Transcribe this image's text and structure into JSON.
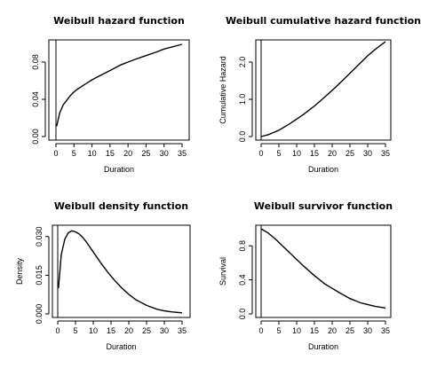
{
  "chart_data": [
    {
      "type": "line",
      "title": "Weibull hazard function",
      "xlabel": "Duration",
      "ylabel": "",
      "xlim": [
        0,
        35
      ],
      "ylim": [
        0,
        0.1
      ],
      "xticks": [
        "0",
        "5",
        "10",
        "15",
        "20",
        "25",
        "30",
        "35"
      ],
      "yticks": [
        "0.00",
        "0.04",
        "0.08"
      ],
      "series": [
        {
          "x": [
            0.2,
            1,
            2,
            3,
            4,
            5,
            6,
            8,
            10,
            12,
            15,
            18,
            20,
            22,
            25,
            28,
            30,
            32,
            35
          ],
          "y": [
            0.011,
            0.025,
            0.034,
            0.039,
            0.044,
            0.048,
            0.051,
            0.056,
            0.061,
            0.065,
            0.071,
            0.077,
            0.08,
            0.083,
            0.087,
            0.091,
            0.094,
            0.096,
            0.099
          ]
        }
      ]
    },
    {
      "type": "line",
      "title": "Weibull cumulative hazard function",
      "xlabel": "Duration",
      "ylabel": "Cumulative Hazard",
      "xlim": [
        0,
        35
      ],
      "ylim": [
        0,
        2.5
      ],
      "xticks": [
        "0",
        "5",
        "10",
        "15",
        "20",
        "25",
        "30",
        "35"
      ],
      "yticks": [
        "0.0",
        "1.0",
        "2.0"
      ],
      "series": [
        {
          "x": [
            0,
            2,
            5,
            8,
            10,
            12,
            15,
            18,
            20,
            22,
            25,
            28,
            30,
            32,
            35
          ],
          "y": [
            0,
            0.05,
            0.17,
            0.34,
            0.47,
            0.6,
            0.82,
            1.07,
            1.24,
            1.42,
            1.7,
            1.98,
            2.17,
            2.33,
            2.55
          ]
        }
      ]
    },
    {
      "type": "line",
      "title": "Weibull density function",
      "xlabel": "Duration",
      "ylabel": "Density",
      "xlim": [
        0,
        35
      ],
      "ylim": [
        0,
        0.033
      ],
      "xticks": [
        "0",
        "5",
        "10",
        "15",
        "20",
        "25",
        "30",
        "35"
      ],
      "yticks": [
        "0.000",
        "0.015",
        "0.030"
      ],
      "series": [
        {
          "x": [
            0.2,
            1,
            2,
            3,
            4,
            5,
            6,
            7,
            8,
            10,
            12,
            14,
            16,
            18,
            20,
            22,
            25,
            28,
            30,
            32,
            35
          ],
          "y": [
            0.01,
            0.023,
            0.029,
            0.0315,
            0.0322,
            0.0318,
            0.031,
            0.0297,
            0.028,
            0.024,
            0.02,
            0.0163,
            0.013,
            0.0101,
            0.0076,
            0.0055,
            0.0033,
            0.0018,
            0.0012,
            0.0008,
            0.0004
          ]
        }
      ]
    },
    {
      "type": "line",
      "title": "Weibull survivor function",
      "xlabel": "Duration",
      "ylabel": "Survival",
      "xlim": [
        0,
        35
      ],
      "ylim": [
        0,
        1
      ],
      "xticks": [
        "0",
        "5",
        "10",
        "15",
        "20",
        "25",
        "30",
        "35"
      ],
      "yticks": [
        "0.0",
        "0.4",
        "0.8"
      ],
      "series": [
        {
          "x": [
            0,
            2,
            4,
            6,
            8,
            10,
            12,
            15,
            18,
            20,
            22,
            25,
            28,
            30,
            32,
            35
          ],
          "y": [
            1.0,
            0.95,
            0.88,
            0.8,
            0.72,
            0.64,
            0.56,
            0.45,
            0.35,
            0.3,
            0.25,
            0.18,
            0.13,
            0.11,
            0.09,
            0.07
          ]
        }
      ]
    }
  ]
}
